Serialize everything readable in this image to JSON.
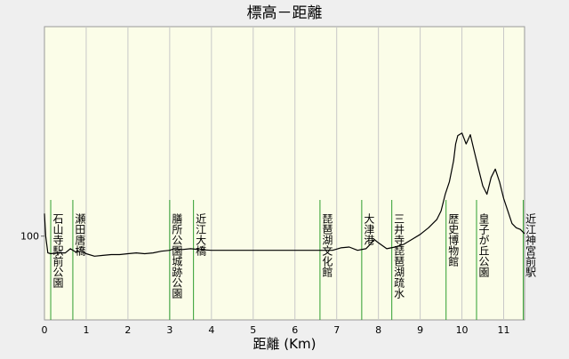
{
  "chart_data": {
    "type": "line",
    "title": "標高－距離",
    "xlabel": "距離 (Km)",
    "ylabel": "",
    "xlim": [
      0,
      11.5
    ],
    "ylim": [
      0,
      350
    ],
    "x_ticks": [
      0,
      1,
      2,
      3,
      4,
      5,
      6,
      7,
      8,
      9,
      10,
      11
    ],
    "x_tick_labels": [
      "0",
      "1",
      "2",
      "3",
      "4",
      "5",
      "6",
      "7",
      "8",
      "9",
      "10",
      "11"
    ],
    "y_ticks": [
      100
    ],
    "y_tick_labels": [
      "100"
    ],
    "grid": true,
    "legend": "none",
    "colors": {
      "plot_background": "#fbfde8",
      "page_background": "#efefef",
      "grid": "#c8c8c8",
      "line": "#000000",
      "marker": "#2e9e2e"
    },
    "series": [
      {
        "x": [
          0,
          0.03,
          0.08,
          0.15,
          0.3,
          0.5,
          0.62,
          0.75,
          0.9,
          1.0,
          1.2,
          1.4,
          1.6,
          1.8,
          2.0,
          2.2,
          2.4,
          2.6,
          2.8,
          3.0,
          3.1,
          3.3,
          3.5,
          3.7,
          4.0,
          4.5,
          5.0,
          5.5,
          6.0,
          6.5,
          6.9,
          7.1,
          7.3,
          7.5,
          7.7,
          7.8,
          7.9,
          8.0,
          8.2,
          8.4,
          8.6,
          8.8,
          9.0,
          9.2,
          9.4,
          9.5,
          9.6,
          9.7,
          9.8,
          9.85,
          9.9,
          10.0,
          10.1,
          10.2,
          10.3,
          10.4,
          10.5,
          10.6,
          10.7,
          10.8,
          10.9,
          11.0,
          11.1,
          11.2,
          11.3,
          11.4,
          11.5
        ],
        "y": [
          127,
          100,
          80,
          79,
          80,
          80,
          85,
          81,
          82,
          79,
          76,
          77,
          78,
          78,
          79,
          80,
          79,
          80,
          82,
          83,
          85,
          84,
          85,
          84,
          83,
          83,
          83,
          83,
          83,
          83,
          83,
          86,
          87,
          83,
          85,
          90,
          96,
          92,
          85,
          87,
          90,
          96,
          102,
          110,
          120,
          130,
          150,
          165,
          190,
          210,
          220,
          223,
          210,
          221,
          200,
          180,
          160,
          150,
          170,
          180,
          165,
          145,
          130,
          115,
          110,
          108,
          103
        ]
      }
    ],
    "markers": [
      {
        "x": 0.15,
        "label": "石山寺駅前公園"
      },
      {
        "x": 0.68,
        "label": "瀬田唐橋"
      },
      {
        "x": 3.0,
        "label": "膳所公園城跡公園"
      },
      {
        "x": 3.57,
        "label": "近江大橋"
      },
      {
        "x": 6.6,
        "label": "琵琶湖文化館"
      },
      {
        "x": 7.6,
        "label": "大津港"
      },
      {
        "x": 8.32,
        "label": "三井寺琵琶湖疏水"
      },
      {
        "x": 9.62,
        "label": "歴史博物館"
      },
      {
        "x": 10.35,
        "label": "皇子が丘公園"
      },
      {
        "x": 11.47,
        "label": "近江神宮前駅"
      }
    ]
  }
}
